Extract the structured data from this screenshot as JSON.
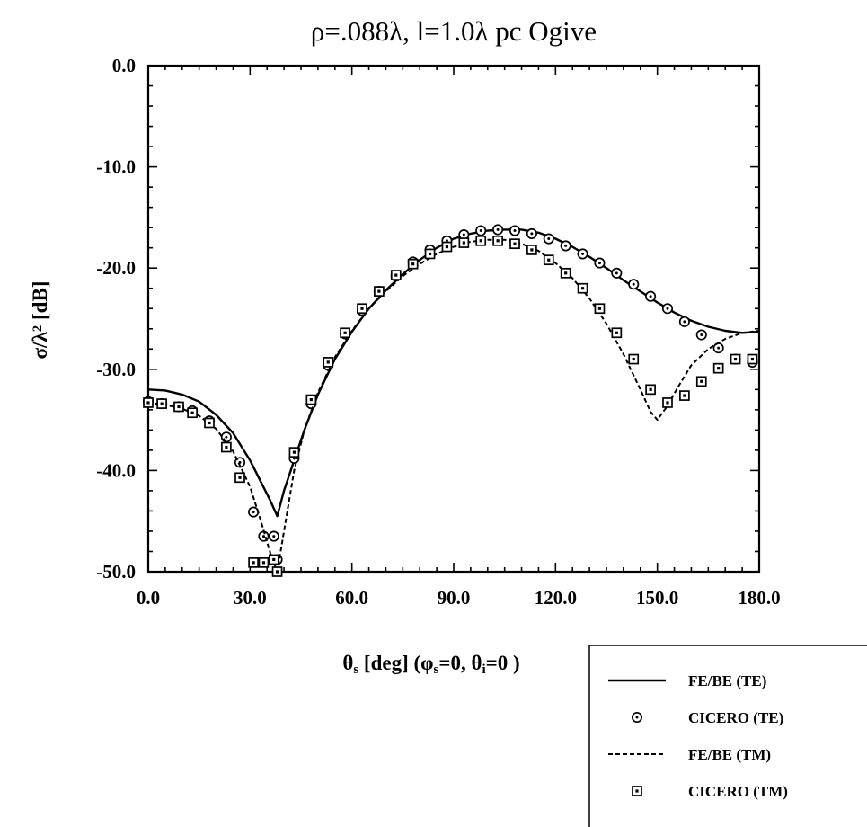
{
  "chart_data": {
    "type": "line",
    "title": "ρ=.088λ, l=1.0λ pc Ogive",
    "xlabel": "θ<sub>s</sub> [deg]  (φ<sub>s</sub>=0, θ<sub>i</sub>=0 )",
    "ylabel": "σ/λ<sup>2</sup> [dB]",
    "xlim": [
      0,
      180
    ],
    "ylim": [
      -50,
      0
    ],
    "x_ticks": [
      "0.0",
      "30.0",
      "60.0",
      "90.0",
      "120.0",
      "150.0",
      "180.0"
    ],
    "y_ticks": [
      "0.0",
      "-10.0",
      "-20.0",
      "-30.0",
      "-40.0",
      "-50.0"
    ],
    "grid": false,
    "legend_position": "bottom-right",
    "series": [
      {
        "name": "FE/BE (TE)",
        "style": "solid",
        "x": [
          0,
          5,
          10,
          15,
          20,
          25,
          30,
          33,
          36,
          38,
          40,
          43,
          46,
          50,
          55,
          60,
          65,
          70,
          75,
          80,
          85,
          90,
          95,
          100,
          105,
          110,
          115,
          120,
          125,
          130,
          135,
          140,
          145,
          150,
          155,
          160,
          165,
          170,
          175,
          180
        ],
        "y": [
          -32.0,
          -32.1,
          -32.5,
          -33.2,
          -34.5,
          -36.3,
          -39.0,
          -41.0,
          -43.0,
          -44.5,
          -42.0,
          -39.0,
          -36.0,
          -32.5,
          -29.0,
          -26.3,
          -24.0,
          -22.2,
          -20.6,
          -19.2,
          -18.0,
          -17.1,
          -16.6,
          -16.3,
          -16.2,
          -16.2,
          -16.5,
          -17.1,
          -17.9,
          -18.9,
          -20.0,
          -21.2,
          -22.3,
          -23.4,
          -24.4,
          -25.2,
          -25.8,
          -26.2,
          -26.4,
          -26.3
        ]
      },
      {
        "name": "CICERO (TE)",
        "style": "circle",
        "x": [
          0,
          4,
          9,
          13,
          18,
          23,
          27,
          31,
          34,
          37,
          38,
          43,
          48,
          53,
          58,
          63,
          68,
          73,
          78,
          83,
          88,
          93,
          98,
          103,
          108,
          113,
          118,
          123,
          128,
          133,
          138,
          143,
          148,
          153,
          158,
          163,
          168,
          173,
          178
        ],
        "y": [
          -33.2,
          -33.4,
          -33.7,
          -34.1,
          -35.1,
          -36.7,
          -39.2,
          -44.1,
          -46.5,
          -46.5,
          -48.8,
          -38.8,
          -33.4,
          -29.6,
          -26.5,
          -24.2,
          -22.3,
          -20.8,
          -19.4,
          -18.2,
          -17.3,
          -16.7,
          -16.3,
          -16.2,
          -16.3,
          -16.6,
          -17.1,
          -17.8,
          -18.6,
          -19.5,
          -20.5,
          -21.6,
          -22.8,
          -24.0,
          -25.3,
          -26.6,
          -27.9,
          -29.0,
          -29.3
        ]
      },
      {
        "name": "FE/BE (TM)",
        "style": "dashed",
        "x": [
          0,
          5,
          10,
          15,
          20,
          25,
          30,
          33,
          36,
          38,
          40,
          43,
          46,
          50,
          55,
          60,
          65,
          70,
          75,
          80,
          85,
          90,
          95,
          100,
          105,
          110,
          115,
          120,
          125,
          130,
          135,
          140,
          145,
          148,
          150,
          153,
          156,
          160,
          165,
          170,
          175,
          180
        ],
        "y": [
          -33.3,
          -33.5,
          -33.9,
          -34.6,
          -35.9,
          -38.1,
          -41.6,
          -44.8,
          -48.2,
          -50.0,
          -46.0,
          -40.0,
          -36.0,
          -32.3,
          -28.8,
          -26.2,
          -24.0,
          -22.3,
          -20.8,
          -19.6,
          -18.6,
          -17.9,
          -17.4,
          -17.2,
          -17.2,
          -17.6,
          -18.3,
          -19.5,
          -21.0,
          -23.0,
          -25.5,
          -28.5,
          -32.0,
          -34.2,
          -35.0,
          -33.6,
          -31.8,
          -29.6,
          -28.0,
          -27.0,
          -26.4,
          -26.2
        ]
      },
      {
        "name": "CICERO (TM)",
        "style": "square",
        "x": [
          0,
          4,
          9,
          13,
          18,
          23,
          27,
          31,
          34,
          37,
          38,
          43,
          48,
          53,
          58,
          63,
          68,
          73,
          78,
          83,
          88,
          93,
          98,
          103,
          108,
          113,
          118,
          123,
          128,
          133,
          138,
          143,
          148,
          153,
          158,
          163,
          168,
          173,
          178
        ],
        "y": [
          -33.3,
          -33.4,
          -33.7,
          -34.3,
          -35.3,
          -37.7,
          -40.7,
          -49.1,
          -49.1,
          -48.8,
          -50.0,
          -38.2,
          -33.0,
          -29.3,
          -26.4,
          -24.0,
          -22.3,
          -20.7,
          -19.6,
          -18.6,
          -17.9,
          -17.5,
          -17.3,
          -17.3,
          -17.6,
          -18.2,
          -19.2,
          -20.5,
          -22.0,
          -24.0,
          -26.4,
          -29.0,
          -32.0,
          -33.3,
          -32.6,
          -31.2,
          -29.9,
          -29.0,
          -29.0
        ]
      }
    ],
    "legend": [
      {
        "label": "FE/BE (TE)",
        "style": "solid"
      },
      {
        "label": "CICERO (TE)",
        "style": "circle"
      },
      {
        "label": "FE/BE (TM)",
        "style": "dashed"
      },
      {
        "label": "CICERO (TM)",
        "style": "square"
      }
    ]
  }
}
